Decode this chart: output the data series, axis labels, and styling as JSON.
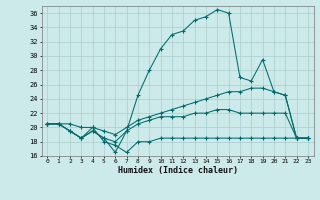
{
  "xlabel": "Humidex (Indice chaleur)",
  "bg_color": "#cceaea",
  "grid_color": "#aacccc",
  "line_color": "#006b6b",
  "xlim_min": -0.5,
  "xlim_max": 23.5,
  "ylim_min": 16,
  "ylim_max": 37,
  "yticks": [
    16,
    18,
    20,
    22,
    24,
    26,
    28,
    30,
    32,
    34,
    36
  ],
  "xticks": [
    0,
    1,
    2,
    3,
    4,
    5,
    6,
    7,
    8,
    9,
    10,
    11,
    12,
    13,
    14,
    15,
    16,
    17,
    18,
    19,
    20,
    21,
    22,
    23
  ],
  "lines": [
    {
      "x": [
        0,
        1,
        2,
        3,
        4,
        5,
        6,
        7,
        8,
        9,
        10,
        11,
        12,
        13,
        14,
        15,
        16,
        17,
        18,
        19,
        20,
        21,
        22,
        23
      ],
      "y": [
        20.5,
        20.5,
        19.5,
        18.5,
        19.5,
        18.5,
        16.5,
        19.5,
        24.5,
        28.0,
        31.0,
        33.0,
        33.5,
        35.0,
        35.5,
        36.5,
        36.0,
        27.0,
        26.5,
        29.5,
        25.0,
        24.5,
        18.5,
        18.5
      ]
    },
    {
      "x": [
        0,
        1,
        2,
        3,
        4,
        5,
        6,
        7,
        8,
        9,
        10,
        11,
        12,
        13,
        14,
        15,
        16,
        17,
        18,
        19,
        20,
        21,
        22,
        23
      ],
      "y": [
        20.5,
        20.5,
        19.5,
        18.5,
        20.0,
        18.0,
        17.5,
        16.5,
        18.0,
        18.0,
        18.5,
        18.5,
        18.5,
        18.5,
        18.5,
        18.5,
        18.5,
        18.5,
        18.5,
        18.5,
        18.5,
        18.5,
        18.5,
        18.5
      ]
    },
    {
      "x": [
        0,
        1,
        2,
        3,
        4,
        5,
        6,
        7,
        8,
        9,
        10,
        11,
        12,
        13,
        14,
        15,
        16,
        17,
        18,
        19,
        20,
        21,
        22,
        23
      ],
      "y": [
        20.5,
        20.5,
        20.5,
        20.0,
        20.0,
        19.5,
        19.0,
        20.0,
        21.0,
        21.5,
        22.0,
        22.5,
        23.0,
        23.5,
        24.0,
        24.5,
        25.0,
        25.0,
        25.5,
        25.5,
        25.0,
        24.5,
        18.5,
        18.5
      ]
    },
    {
      "x": [
        0,
        1,
        2,
        3,
        4,
        5,
        6,
        7,
        8,
        9,
        10,
        11,
        12,
        13,
        14,
        15,
        16,
        17,
        18,
        19,
        20,
        21,
        22,
        23
      ],
      "y": [
        20.5,
        20.5,
        19.5,
        18.5,
        19.5,
        18.5,
        18.0,
        19.5,
        20.5,
        21.0,
        21.5,
        21.5,
        21.5,
        22.0,
        22.0,
        22.5,
        22.5,
        22.0,
        22.0,
        22.0,
        22.0,
        22.0,
        18.5,
        18.5
      ]
    }
  ]
}
